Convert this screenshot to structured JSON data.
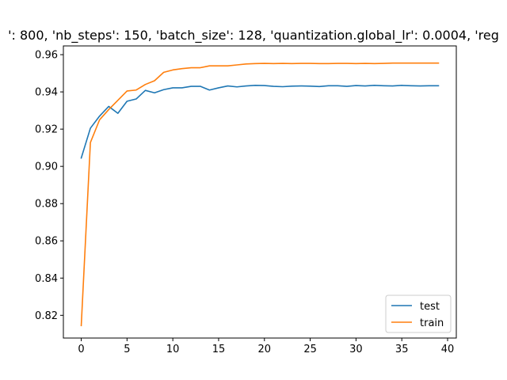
{
  "chart_data": {
    "type": "line",
    "title": "': 800, 'nb_steps': 150, 'batch_size': 128, 'quantization.global_lr': 0.0004, 'reg",
    "xlabel": "",
    "ylabel": "",
    "xlim": [
      -1.95,
      40.95
    ],
    "ylim": [
      0.8078,
      0.9647
    ],
    "xticks": [
      0,
      5,
      10,
      15,
      20,
      25,
      30,
      35,
      40
    ],
    "yticks": [
      0.82,
      0.84,
      0.86,
      0.88,
      0.9,
      0.92,
      0.94,
      0.96
    ],
    "ytick_labels": [
      "0.82",
      "0.84",
      "0.86",
      "0.88",
      "0.90",
      "0.92",
      "0.94",
      "0.96"
    ],
    "grid": false,
    "legend_position": "lower-right",
    "x": [
      0,
      1,
      2,
      3,
      4,
      5,
      6,
      7,
      8,
      9,
      10,
      11,
      12,
      13,
      14,
      15,
      16,
      17,
      18,
      19,
      20,
      21,
      22,
      23,
      24,
      25,
      26,
      27,
      28,
      29,
      30,
      31,
      32,
      33,
      34,
      35,
      36,
      37,
      38,
      39
    ],
    "series": [
      {
        "name": "test",
        "color": "#1f77b4",
        "values": [
          0.9045,
          0.9205,
          0.927,
          0.9322,
          0.9285,
          0.935,
          0.9362,
          0.9408,
          0.9395,
          0.9412,
          0.9422,
          0.9422,
          0.943,
          0.943,
          0.941,
          0.9422,
          0.9432,
          0.9427,
          0.9432,
          0.9435,
          0.9434,
          0.943,
          0.9428,
          0.9431,
          0.9432,
          0.9431,
          0.9429,
          0.9433,
          0.9433,
          0.943,
          0.9434,
          0.9432,
          0.9435,
          0.9433,
          0.9432,
          0.9435,
          0.9433,
          0.9432,
          0.9433,
          0.9433
        ]
      },
      {
        "name": "train",
        "color": "#ff7f0e",
        "values": [
          0.8145,
          0.9128,
          0.925,
          0.9305,
          0.9355,
          0.9405,
          0.941,
          0.944,
          0.946,
          0.9505,
          0.9518,
          0.9525,
          0.953,
          0.953,
          0.954,
          0.954,
          0.954,
          0.9545,
          0.955,
          0.9552,
          0.9553,
          0.9552,
          0.9553,
          0.9552,
          0.9553,
          0.9553,
          0.9552,
          0.9552,
          0.9553,
          0.9553,
          0.9552,
          0.9553,
          0.9552,
          0.9553,
          0.9555,
          0.9555,
          0.9555,
          0.9555,
          0.9555,
          0.9555
        ]
      }
    ]
  }
}
